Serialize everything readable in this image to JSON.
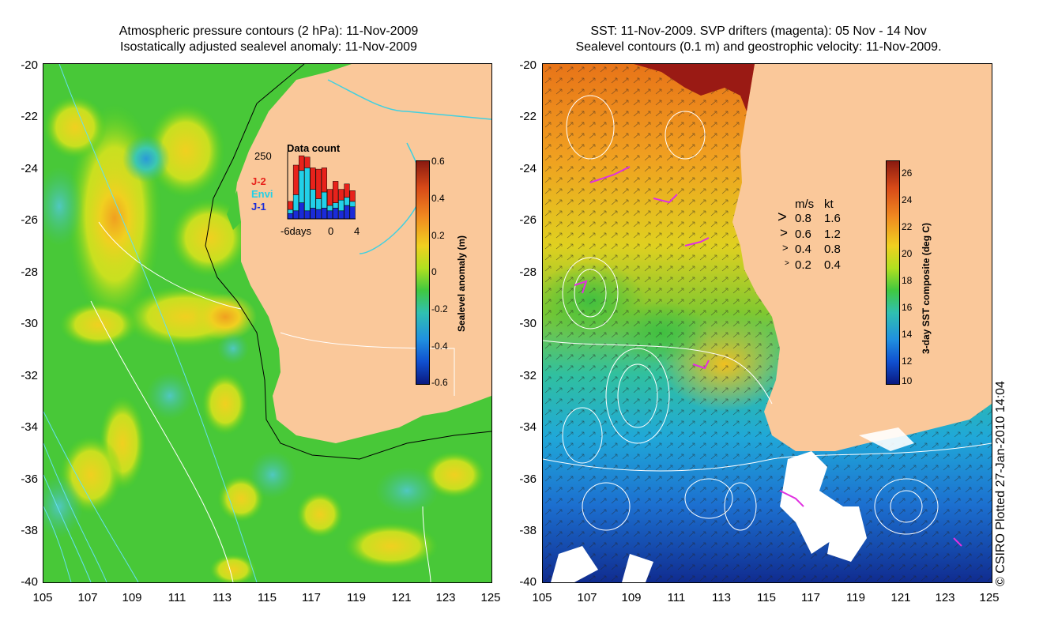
{
  "left_panel": {
    "title_line1": "Atmospheric pressure contours (2 hPa): 11-Nov-2009",
    "title_line2": "Isostatically adjusted sealevel anomaly: 11-Nov-2009",
    "y_ticks": [
      "-20",
      "-22",
      "-24",
      "-26",
      "-28",
      "-30",
      "-32",
      "-34",
      "-36",
      "-38",
      "-40"
    ],
    "x_ticks": [
      "105",
      "107",
      "109",
      "111",
      "113",
      "115",
      "117",
      "119",
      "121",
      "123",
      "125"
    ],
    "colorbar": {
      "label": "Sealevel anomaly (m)",
      "ticks": [
        "0.6",
        "0.4",
        "0.2",
        "0",
        "-0.2",
        "-0.4",
        "-0.6"
      ]
    },
    "inset": {
      "title": "Data count",
      "y_top": "250",
      "x_labels": [
        "-6days",
        "0",
        "4"
      ],
      "legend": [
        {
          "label": "J-2",
          "color": "#e8221b"
        },
        {
          "label": "Envi",
          "color": "#22d0e8"
        },
        {
          "label": "J-1",
          "color": "#1a2bd8"
        }
      ],
      "bars": [
        {
          "j1": 20,
          "envi": 15,
          "j2": 30
        },
        {
          "j1": 30,
          "envi": 60,
          "j2": 110
        },
        {
          "j1": 60,
          "envi": 120,
          "j2": 55
        },
        {
          "j1": 30,
          "envi": 160,
          "j2": 40
        },
        {
          "j1": 40,
          "envi": 70,
          "j2": 80
        },
        {
          "j1": 35,
          "envi": 40,
          "j2": 110
        },
        {
          "j1": 40,
          "envi": 60,
          "j2": 90
        },
        {
          "j1": 30,
          "envi": 20,
          "j2": 60
        },
        {
          "j1": 40,
          "envi": 20,
          "j2": 80
        },
        {
          "j1": 30,
          "envi": 40,
          "j2": 40
        },
        {
          "j1": 50,
          "envi": 30,
          "j2": 50
        },
        {
          "j1": 45,
          "envi": 20,
          "j2": 40
        }
      ]
    }
  },
  "right_panel": {
    "title_line1": "SST: 11-Nov-2009. SVP drifters (magenta): 05 Nov - 14 Nov",
    "title_line2": "Sealevel contours (0.1 m) and geostrophic velocity: 11-Nov-2009.",
    "y_ticks": [
      "-20",
      "-22",
      "-24",
      "-26",
      "-28",
      "-30",
      "-32",
      "-34",
      "-36",
      "-38",
      "-40"
    ],
    "x_ticks": [
      "105",
      "107",
      "109",
      "111",
      "113",
      "115",
      "117",
      "119",
      "121",
      "123",
      "125"
    ],
    "colorbar": {
      "label": "3-day SST composite (deg C)",
      "ticks": [
        "26",
        "24",
        "22",
        "20",
        "18",
        "16",
        "14",
        "12",
        "10"
      ]
    },
    "velocity_legend": {
      "header_ms": "m/s",
      "header_kt": "kt",
      "rows": [
        {
          "ms": "0.8",
          "kt": "1.6"
        },
        {
          "ms": "0.6",
          "kt": "1.2"
        },
        {
          "ms": "0.4",
          "kt": "0.8"
        },
        {
          "ms": "0.2",
          "kt": "0.4"
        }
      ]
    }
  },
  "credit": "© CSIRO Plotted 27-Jan-2010 14:04"
}
